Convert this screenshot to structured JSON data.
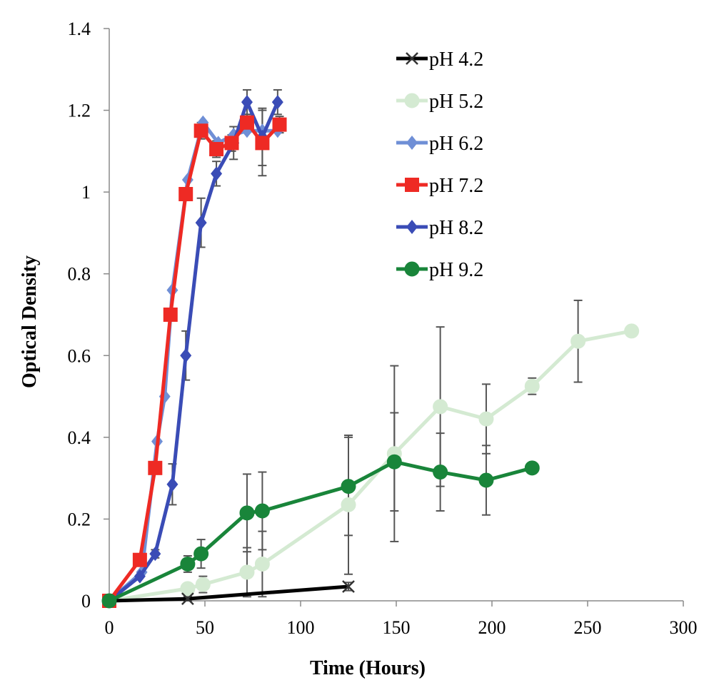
{
  "chart_data": {
    "type": "line",
    "title": "",
    "xlabel": "Time (Hours)",
    "ylabel": "Optical Density",
    "xlim": [
      0,
      300
    ],
    "ylim": [
      0,
      1.4
    ],
    "xticks": [
      "0",
      "50",
      "100",
      "150",
      "200",
      "250",
      "300"
    ],
    "yticks": [
      "0",
      "0.2",
      "0.4",
      "0.6",
      "0.8",
      "1",
      "1.2",
      "1.4"
    ],
    "grid": false,
    "legend_position": "top-right",
    "series": [
      {
        "name": "pH 4.2",
        "color": "#000000",
        "marker": "x",
        "x": [
          0,
          41,
          125
        ],
        "y": [
          0,
          0.005,
          0.035
        ],
        "err": [
          0,
          0.005,
          0.01
        ]
      },
      {
        "name": "pH 5.2",
        "color": "#d4ead2",
        "marker": "circle",
        "x": [
          0,
          41,
          49,
          72,
          80,
          125,
          149,
          173,
          197,
          221,
          245,
          273
        ],
        "y": [
          0,
          0.03,
          0.04,
          0.07,
          0.09,
          0.235,
          0.36,
          0.475,
          0.445,
          0.525,
          0.635,
          0.66
        ],
        "err": [
          0,
          0.01,
          0.02,
          0.06,
          0.08,
          0.17,
          0.215,
          0.195,
          0.085,
          0.02,
          0.1,
          0.0
        ]
      },
      {
        "name": "pH 6.2",
        "color": "#6f8fd6",
        "marker": "diamond",
        "x": [
          0,
          17,
          25,
          29,
          33,
          41,
          49,
          57,
          65,
          72,
          80,
          88
        ],
        "y": [
          0,
          0.07,
          0.39,
          0.5,
          0.76,
          1.03,
          1.17,
          1.12,
          1.14,
          1.15,
          1.15,
          1.15
        ],
        "err": [
          0,
          0,
          0,
          0,
          0,
          0,
          0,
          0,
          0,
          0,
          0,
          0
        ]
      },
      {
        "name": "pH 7.2",
        "color": "#ee2a24",
        "marker": "square",
        "x": [
          0,
          16,
          24,
          32,
          40,
          48,
          56,
          64,
          72,
          80,
          89
        ],
        "y": [
          0,
          0.1,
          0.325,
          0.7,
          0.995,
          1.15,
          1.105,
          1.12,
          1.17,
          1.12,
          1.165
        ],
        "err": [
          0,
          0.005,
          0.01,
          0.01,
          0.01,
          0.02,
          0.02,
          0.02,
          0.02,
          0.08,
          0.02
        ]
      },
      {
        "name": "pH 8.2",
        "color": "#3a4cb6",
        "marker": "diamond",
        "x": [
          0,
          16,
          24,
          33,
          40,
          48,
          56,
          65,
          72,
          80,
          88
        ],
        "y": [
          0,
          0.06,
          0.115,
          0.285,
          0.6,
          0.925,
          1.045,
          1.12,
          1.22,
          1.135,
          1.22
        ],
        "err": [
          0,
          0,
          0.01,
          0.05,
          0.06,
          0.06,
          0.03,
          0.04,
          0.03,
          0.07,
          0.03
        ]
      },
      {
        "name": "pH 9.2",
        "color": "#19853a",
        "marker": "circle",
        "x": [
          0,
          41,
          48,
          72,
          80,
          125,
          149,
          173,
          197,
          221
        ],
        "y": [
          0,
          0.09,
          0.115,
          0.215,
          0.22,
          0.28,
          0.34,
          0.315,
          0.295,
          0.325
        ],
        "err": [
          0,
          0.02,
          0.035,
          0.095,
          0.095,
          0.12,
          0.12,
          0.095,
          0.085,
          0.0
        ]
      }
    ]
  }
}
